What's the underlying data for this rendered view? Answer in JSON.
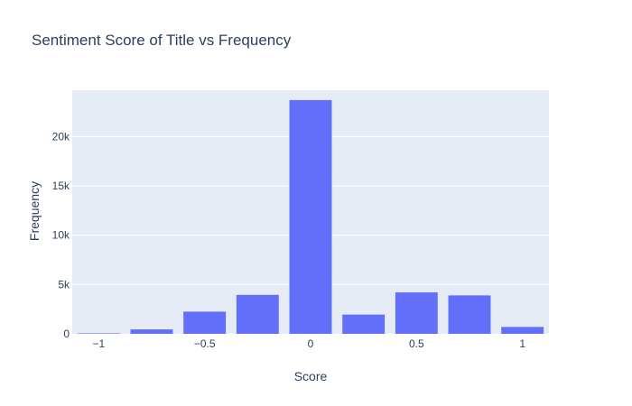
{
  "chart_data": {
    "type": "bar",
    "title": "Sentiment Score of Title vs Frequency",
    "xlabel": "Score",
    "ylabel": "Frequency",
    "x": [
      -1,
      -0.75,
      -0.5,
      -0.25,
      0,
      0.25,
      0.5,
      0.75,
      1
    ],
    "values": [
      50,
      450,
      2250,
      3950,
      23700,
      1950,
      4200,
      3900,
      700
    ],
    "xlim": [
      -1.125,
      1.125
    ],
    "ylim": [
      0,
      24700
    ],
    "x_ticks": [
      {
        "value": -1,
        "label": "−1"
      },
      {
        "value": -0.5,
        "label": "−0.5"
      },
      {
        "value": 0,
        "label": "0"
      },
      {
        "value": 0.5,
        "label": "0.5"
      },
      {
        "value": 1,
        "label": "1"
      }
    ],
    "y_ticks": [
      {
        "value": 0,
        "label": "0"
      },
      {
        "value": 5000,
        "label": "5k"
      },
      {
        "value": 10000,
        "label": "10k"
      },
      {
        "value": 15000,
        "label": "15k"
      },
      {
        "value": 20000,
        "label": "20k"
      }
    ],
    "bar_color": "#636efa",
    "plot_bg": "#e5ecf6",
    "grid": true
  }
}
